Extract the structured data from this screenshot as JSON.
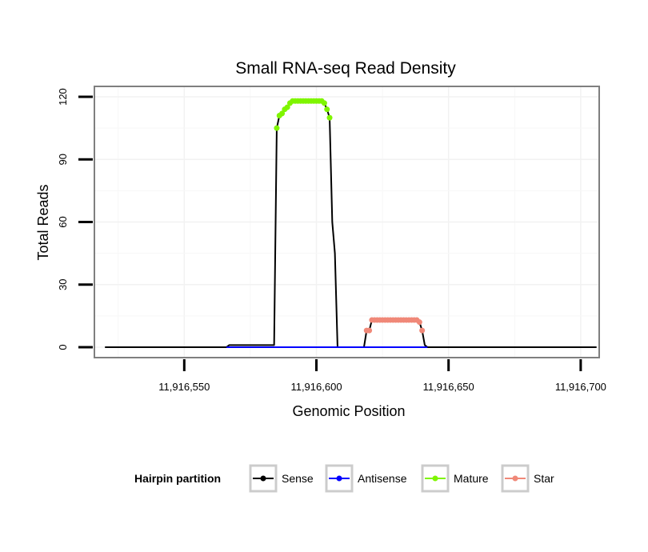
{
  "chart_data": {
    "type": "line",
    "title": "Small RNA-seq Read Density",
    "xlabel": "Genomic Position",
    "ylabel": "Total Reads",
    "xlim": [
      11916516,
      11916707
    ],
    "ylim": [
      -5,
      125
    ],
    "x_ticks": [
      11916550,
      11916600,
      11916650,
      11916700
    ],
    "x_tick_labels": [
      "11,916,550",
      "11,916,600",
      "11,916,650",
      "11,916,700"
    ],
    "y_ticks": [
      0,
      30,
      60,
      90,
      120
    ],
    "y_tick_labels": [
      "0",
      "30",
      "60",
      "90",
      "120"
    ],
    "grid": true,
    "legend": {
      "title": "Hairpin partition",
      "position": "bottom",
      "entries": [
        "Sense",
        "Antisense",
        "Mature",
        "Star"
      ]
    },
    "series": [
      {
        "name": "Sense",
        "color": "#000000",
        "style": "line",
        "points": [
          [
            11916520,
            0
          ],
          [
            11916566,
            0
          ],
          [
            11916567,
            1
          ],
          [
            11916584,
            1
          ],
          [
            11916585,
            105
          ],
          [
            11916586,
            111
          ],
          [
            11916587,
            112
          ],
          [
            11916588,
            114
          ],
          [
            11916589,
            115
          ],
          [
            11916590,
            117
          ],
          [
            11916591,
            118
          ],
          [
            11916592,
            118
          ],
          [
            11916593,
            118
          ],
          [
            11916594,
            118
          ],
          [
            11916595,
            118
          ],
          [
            11916596,
            118
          ],
          [
            11916597,
            118
          ],
          [
            11916598,
            118
          ],
          [
            11916599,
            118
          ],
          [
            11916600,
            118
          ],
          [
            11916601,
            118
          ],
          [
            11916602,
            118
          ],
          [
            11916603,
            117
          ],
          [
            11916604,
            114
          ],
          [
            11916605,
            110
          ],
          [
            11916606,
            60
          ],
          [
            11916607,
            45
          ],
          [
            11916608,
            0
          ],
          [
            11916618,
            0
          ],
          [
            11916619,
            8
          ],
          [
            11916620,
            8
          ],
          [
            11916621,
            13
          ],
          [
            11916622,
            13
          ],
          [
            11916623,
            13
          ],
          [
            11916624,
            13
          ],
          [
            11916625,
            13
          ],
          [
            11916626,
            13
          ],
          [
            11916627,
            13
          ],
          [
            11916628,
            13
          ],
          [
            11916629,
            13
          ],
          [
            11916630,
            13
          ],
          [
            11916631,
            13
          ],
          [
            11916632,
            13
          ],
          [
            11916633,
            13
          ],
          [
            11916634,
            13
          ],
          [
            11916635,
            13
          ],
          [
            11916636,
            13
          ],
          [
            11916637,
            13
          ],
          [
            11916638,
            13
          ],
          [
            11916639,
            12
          ],
          [
            11916640,
            8
          ],
          [
            11916641,
            1
          ],
          [
            11916642,
            0
          ],
          [
            11916706,
            0
          ]
        ]
      },
      {
        "name": "Antisense",
        "color": "#0000ff",
        "style": "line",
        "points": [
          [
            11916566,
            0
          ],
          [
            11916642,
            0
          ]
        ]
      },
      {
        "name": "Mature",
        "color": "#7ff500",
        "style": "points",
        "points": [
          [
            11916585,
            105
          ],
          [
            11916586,
            111
          ],
          [
            11916587,
            112
          ],
          [
            11916588,
            114
          ],
          [
            11916589,
            115
          ],
          [
            11916590,
            117
          ],
          [
            11916591,
            118
          ],
          [
            11916592,
            118
          ],
          [
            11916593,
            118
          ],
          [
            11916594,
            118
          ],
          [
            11916595,
            118
          ],
          [
            11916596,
            118
          ],
          [
            11916597,
            118
          ],
          [
            11916598,
            118
          ],
          [
            11916599,
            118
          ],
          [
            11916600,
            118
          ],
          [
            11916601,
            118
          ],
          [
            11916602,
            118
          ],
          [
            11916603,
            117
          ],
          [
            11916604,
            114
          ],
          [
            11916605,
            110
          ]
        ]
      },
      {
        "name": "Star",
        "color": "#f08878",
        "style": "points",
        "points": [
          [
            11916619,
            8
          ],
          [
            11916620,
            8
          ],
          [
            11916621,
            13
          ],
          [
            11916622,
            13
          ],
          [
            11916623,
            13
          ],
          [
            11916624,
            13
          ],
          [
            11916625,
            13
          ],
          [
            11916626,
            13
          ],
          [
            11916627,
            13
          ],
          [
            11916628,
            13
          ],
          [
            11916629,
            13
          ],
          [
            11916630,
            13
          ],
          [
            11916631,
            13
          ],
          [
            11916632,
            13
          ],
          [
            11916633,
            13
          ],
          [
            11916634,
            13
          ],
          [
            11916635,
            13
          ],
          [
            11916636,
            13
          ],
          [
            11916637,
            13
          ],
          [
            11916638,
            13
          ],
          [
            11916639,
            12
          ],
          [
            11916640,
            8
          ]
        ]
      }
    ]
  }
}
